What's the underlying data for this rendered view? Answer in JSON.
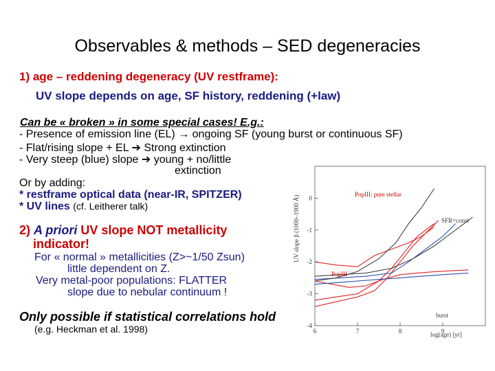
{
  "slide": {
    "title": "Observables & methods – SED degeneracies",
    "section1": {
      "heading": "1) age – reddening degeneracy (UV restframe):",
      "subheading": "UV slope depends on age, SF history, reddening (+law)"
    },
    "broken": {
      "intro": "Can be « broken » in some special cases! E.g.:",
      "line1": "- Presence of emission line (EL) → ongoing SF (young burst or continuous SF)",
      "line2": "- Flat/rising slope + EL ➔ Strong extinction",
      "line3": "- Very steep (blue) slope ➔ young + no/little",
      "line3_cont": "extinction"
    },
    "adding": {
      "intro": "Or by adding:",
      "item1": "* restframe optical data (near-IR, SPITZER)",
      "item2_main": "* UV lines",
      "item2_ref": "(cf. Leitherer talk)"
    },
    "section2": {
      "prefix": "2)",
      "italic": "A priori",
      "rest": "UV slope NOT metallicity",
      "line2": "indicator!",
      "note1": "For « normal » metallicities (Z>~1/50 Zsun)",
      "note1b": "little dependent on Z.",
      "note2": "Very metal-poor populations: FLATTER",
      "note2b": "slope due to nebular continuum !"
    },
    "conclusion": {
      "text": "Only possible if statistical correlations hold",
      "ref": "(e.g. Heckman et al. 1998)"
    }
  },
  "chart_data": {
    "type": "line",
    "xlabel": "log(age) [yr]",
    "ylabel": "UV slope β (1000–1900 Å)",
    "xlim": [
      6,
      10
    ],
    "ylim": [
      -4,
      1
    ],
    "xticks": [
      "6",
      "7",
      "8",
      "9"
    ],
    "yticks": [
      "-4",
      "-3",
      "-2",
      "-1",
      "0"
    ],
    "annotations": [
      "PopIII: pure stellar",
      "SFR=const",
      "PopIII",
      "burst"
    ],
    "series": [
      {
        "color": "#e02020",
        "points": [
          [
            6.0,
            -3.4
          ],
          [
            6.5,
            -3.25
          ],
          [
            7.0,
            -3.1
          ],
          [
            7.4,
            -2.9
          ],
          [
            7.7,
            -2.5
          ],
          [
            8.0,
            -2.0
          ],
          [
            8.3,
            -1.5
          ],
          [
            8.6,
            -1.1
          ],
          [
            8.9,
            -0.7
          ]
        ]
      },
      {
        "color": "#e02020",
        "points": [
          [
            6.0,
            -3.2
          ],
          [
            6.5,
            -3.1
          ],
          [
            7.0,
            -3.0
          ],
          [
            7.5,
            -2.6
          ],
          [
            7.8,
            -2.2
          ],
          [
            8.1,
            -1.7
          ],
          [
            8.4,
            -1.2
          ],
          [
            8.8,
            -0.8
          ]
        ]
      },
      {
        "color": "#e02020",
        "points": [
          [
            6.0,
            -2.6
          ],
          [
            6.4,
            -2.7
          ],
          [
            6.8,
            -2.8
          ],
          [
            7.2,
            -2.75
          ],
          [
            7.6,
            -2.55
          ],
          [
            8.0,
            -2.4
          ],
          [
            8.4,
            -2.35
          ],
          [
            8.9,
            -2.3
          ],
          [
            9.6,
            -2.25
          ]
        ]
      },
      {
        "color": "#e02020",
        "points": [
          [
            6.0,
            -2.0
          ],
          [
            6.5,
            -2.1
          ],
          [
            7.0,
            -2.15
          ],
          [
            7.4,
            -1.8
          ],
          [
            7.8,
            -1.6
          ],
          [
            8.2,
            -1.4
          ],
          [
            8.5,
            -1.2
          ],
          [
            8.8,
            -0.9
          ]
        ]
      },
      {
        "color": "#2b4fa8",
        "points": [
          [
            6.0,
            -2.7
          ],
          [
            6.5,
            -2.65
          ],
          [
            7.0,
            -2.6
          ],
          [
            7.5,
            -2.55
          ],
          [
            8.0,
            -2.5
          ],
          [
            8.5,
            -2.45
          ],
          [
            9.0,
            -2.4
          ],
          [
            9.6,
            -2.35
          ]
        ]
      },
      {
        "color": "#2b4fa8",
        "points": [
          [
            6.0,
            -2.55
          ],
          [
            6.6,
            -2.5
          ],
          [
            7.2,
            -2.45
          ],
          [
            7.8,
            -2.35
          ],
          [
            8.2,
            -2.0
          ],
          [
            8.6,
            -1.6
          ],
          [
            9.0,
            -1.2
          ],
          [
            9.3,
            -0.8
          ]
        ]
      },
      {
        "color": "#404040",
        "points": [
          [
            6.0,
            -2.6
          ],
          [
            6.5,
            -2.5
          ],
          [
            7.0,
            -2.3
          ],
          [
            7.5,
            -1.9
          ],
          [
            7.9,
            -1.4
          ],
          [
            8.2,
            -0.8
          ],
          [
            8.5,
            -0.3
          ],
          [
            8.8,
            0.3
          ]
        ]
      },
      {
        "color": "#404040",
        "points": [
          [
            6.0,
            -2.45
          ],
          [
            6.6,
            -2.4
          ],
          [
            7.2,
            -2.35
          ],
          [
            7.8,
            -2.2
          ],
          [
            8.3,
            -1.9
          ],
          [
            8.8,
            -1.5
          ],
          [
            9.3,
            -1.0
          ],
          [
            9.7,
            -0.6
          ]
        ]
      }
    ]
  }
}
